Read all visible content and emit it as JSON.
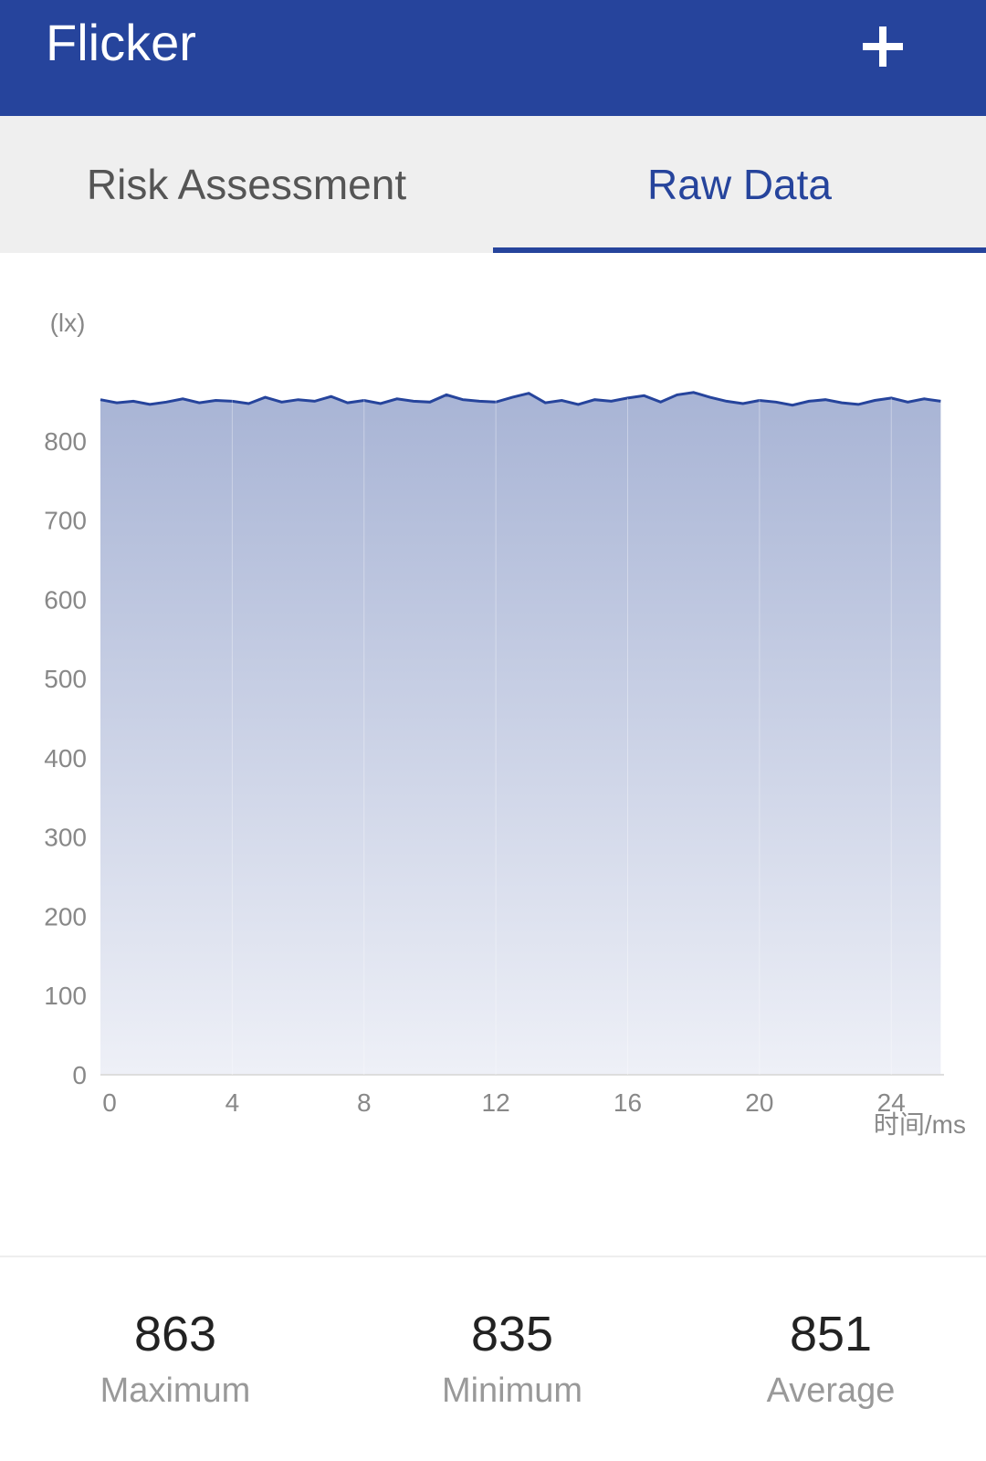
{
  "app_bar": {
    "title": "Flicker"
  },
  "tabs": [
    "Risk Assessment",
    "Raw Data"
  ],
  "chart_data": {
    "type": "area",
    "y_label": "(lx)",
    "x_label": "时间/ms",
    "x": [
      0,
      0.5,
      1,
      1.5,
      2,
      2.5,
      3,
      3.5,
      4,
      4.5,
      5,
      5.5,
      6,
      6.5,
      7,
      7.5,
      8,
      8.5,
      9,
      9.5,
      10,
      10.5,
      11,
      11.5,
      12,
      12.5,
      13,
      13.5,
      14,
      14.5,
      15,
      15.5,
      16,
      16.5,
      17,
      17.5,
      18,
      18.5,
      19,
      19.5,
      20,
      20.5,
      21,
      21.5,
      22,
      22.5,
      23,
      23.5,
      24,
      24.5,
      25,
      25.5
    ],
    "series": [
      {
        "color": "#26449c",
        "values": [
          852,
          848,
          850,
          846,
          849,
          853,
          848,
          851,
          850,
          847,
          855,
          849,
          852,
          850,
          856,
          848,
          851,
          847,
          853,
          850,
          849,
          858,
          852,
          850,
          849,
          855,
          860,
          848,
          851,
          846,
          852,
          850,
          854,
          857,
          849,
          858,
          861,
          855,
          850,
          847,
          851,
          849,
          845,
          850,
          852,
          848,
          846,
          851,
          854,
          849,
          853,
          850
        ]
      }
    ],
    "xlim": [
      0,
      25.6
    ],
    "xticks": [
      0,
      4,
      8,
      12,
      16,
      20,
      24
    ],
    "ylim": [
      0,
      900
    ],
    "yticks": [
      0,
      100,
      200,
      300,
      400,
      500,
      600,
      700,
      800
    ],
    "grid": true
  },
  "stats": [
    {
      "value": 863,
      "label": "Maximum"
    },
    {
      "value": 835,
      "label": "Minimum"
    },
    {
      "value": 851,
      "label": "Average"
    }
  ]
}
